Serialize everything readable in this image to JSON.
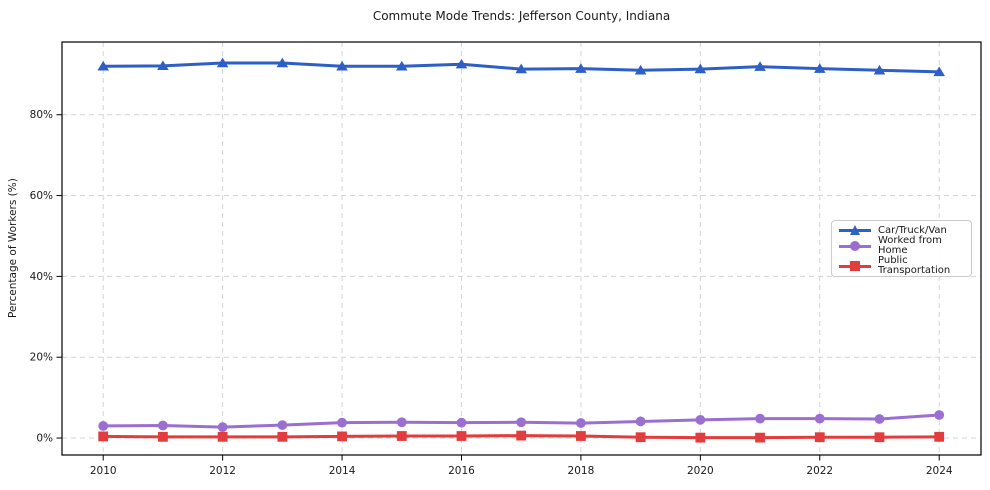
{
  "chart_data": {
    "type": "line",
    "title": "Commute Mode Trends: Jefferson County, Indiana",
    "xlabel": "",
    "ylabel": "Percentage of Workers (%)",
    "x": [
      2010,
      2011,
      2012,
      2013,
      2014,
      2015,
      2016,
      2017,
      2018,
      2019,
      2020,
      2021,
      2022,
      2023,
      2024
    ],
    "xtick_values": [
      2010,
      2012,
      2014,
      2016,
      2018,
      2020,
      2022,
      2024
    ],
    "xtick_labels": [
      "2010",
      "2012",
      "2014",
      "2016",
      "2018",
      "2020",
      "2022",
      "2024"
    ],
    "ytick_values": [
      0,
      20,
      40,
      60,
      80
    ],
    "ytick_labels": [
      "0%",
      "20%",
      "40%",
      "60%",
      "80%"
    ],
    "xlim": [
      2009.31,
      2024.7
    ],
    "ylim": [
      -4.2,
      98
    ],
    "grid": true,
    "grid_style": "dashed",
    "legend_position": "center-right",
    "series": [
      {
        "name": "Car/Truck/Van",
        "color": "#2e5fc6",
        "marker": "triangle",
        "values": [
          92.0,
          92.1,
          92.8,
          92.8,
          92.0,
          92.0,
          92.5,
          91.3,
          91.4,
          91.0,
          91.3,
          91.9,
          91.4,
          91.0,
          90.6
        ]
      },
      {
        "name": "Worked from Home",
        "color": "#9b6fd2",
        "marker": "circle",
        "values": [
          3.0,
          3.1,
          2.7,
          3.2,
          3.8,
          3.9,
          3.8,
          3.9,
          3.7,
          4.1,
          4.5,
          4.8,
          4.8,
          4.7,
          5.7
        ]
      },
      {
        "name": "Public Transportation",
        "color": "#e23c3c",
        "marker": "square",
        "values": [
          0.4,
          0.3,
          0.3,
          0.3,
          0.4,
          0.5,
          0.5,
          0.6,
          0.5,
          0.2,
          0.1,
          0.1,
          0.2,
          0.2,
          0.3
        ]
      }
    ],
    "colors": {
      "grid": "#d4d4d4",
      "axis_frame": "#000000",
      "tick_text": "#1a1a1a",
      "background": "#ffffff"
    }
  }
}
